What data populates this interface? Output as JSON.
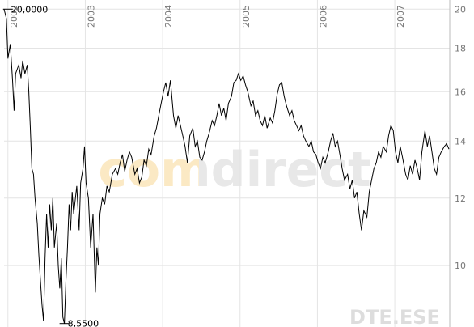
{
  "chart_data": {
    "type": "line",
    "log_scale": true,
    "grid": true,
    "color": "#000000",
    "xlim": [
      2001.95,
      2007.71
    ],
    "xticks": [
      2002,
      2003,
      2004,
      2005,
      2006,
      2007
    ],
    "ylim": [
      8.47,
      20.5
    ],
    "yticks": [
      10,
      12,
      14,
      16,
      18,
      20
    ],
    "x": [
      2001.95,
      2001.98,
      2002.0,
      2002.03,
      2002.06,
      2002.08,
      2002.1,
      2002.14,
      2002.17,
      2002.19,
      2002.22,
      2002.25,
      2002.27,
      2002.29,
      2002.31,
      2002.33,
      2002.35,
      2002.38,
      2002.4,
      2002.42,
      2002.44,
      2002.46,
      2002.48,
      2002.5,
      2002.52,
      2002.54,
      2002.56,
      2002.58,
      2002.6,
      2002.63,
      2002.65,
      2002.67,
      2002.69,
      2002.71,
      2002.73,
      2002.75,
      2002.77,
      2002.79,
      2002.81,
      2002.83,
      2002.85,
      2002.89,
      2002.92,
      2002.94,
      2002.97,
      2002.99,
      2003.01,
      2003.04,
      2003.07,
      2003.1,
      2003.13,
      2003.15,
      2003.17,
      2003.19,
      2003.22,
      2003.25,
      2003.28,
      2003.31,
      2003.35,
      2003.39,
      2003.42,
      2003.45,
      2003.48,
      2003.51,
      2003.54,
      2003.57,
      2003.6,
      2003.64,
      2003.67,
      2003.7,
      2003.73,
      2003.76,
      2003.79,
      2003.82,
      2003.85,
      2003.89,
      2003.92,
      2003.95,
      2003.98,
      2004.01,
      2004.04,
      2004.07,
      2004.1,
      2004.14,
      2004.17,
      2004.2,
      2004.23,
      2004.26,
      2004.29,
      2004.32,
      2004.35,
      2004.39,
      2004.42,
      2004.45,
      2004.48,
      2004.51,
      2004.54,
      2004.57,
      2004.6,
      2004.64,
      2004.67,
      2004.7,
      2004.73,
      2004.76,
      2004.79,
      2004.82,
      2004.85,
      2004.89,
      2004.92,
      2004.95,
      2004.98,
      2005.01,
      2005.04,
      2005.07,
      2005.1,
      2005.14,
      2005.17,
      2005.2,
      2005.23,
      2005.26,
      2005.29,
      2005.32,
      2005.35,
      2005.39,
      2005.42,
      2005.45,
      2005.48,
      2005.51,
      2005.54,
      2005.57,
      2005.6,
      2005.64,
      2005.67,
      2005.7,
      2005.73,
      2005.76,
      2005.79,
      2005.82,
      2005.85,
      2005.89,
      2005.92,
      2005.95,
      2005.98,
      2006.01,
      2006.04,
      2006.07,
      2006.1,
      2006.14,
      2006.17,
      2006.2,
      2006.23,
      2006.26,
      2006.29,
      2006.32,
      2006.35,
      2006.39,
      2006.42,
      2006.45,
      2006.48,
      2006.51,
      2006.54,
      2006.57,
      2006.6,
      2006.64,
      2006.67,
      2006.7,
      2006.73,
      2006.76,
      2006.79,
      2006.82,
      2006.85,
      2006.89,
      2006.92,
      2006.95,
      2006.98,
      2007.01,
      2007.04,
      2007.07,
      2007.1,
      2007.14,
      2007.17,
      2007.2,
      2007.23,
      2007.26,
      2007.29,
      2007.32,
      2007.35,
      2007.39,
      2007.42,
      2007.45,
      2007.48,
      2007.51,
      2007.54,
      2007.57,
      2007.6,
      2007.64,
      2007.67,
      2007.7
    ],
    "values": [
      20.0,
      19.5,
      17.5,
      18.2,
      16.5,
      15.2,
      16.8,
      17.2,
      16.6,
      17.4,
      16.8,
      17.2,
      16.0,
      14.5,
      13.0,
      12.8,
      12.0,
      11.2,
      10.3,
      9.6,
      9.0,
      8.6,
      10.2,
      11.5,
      10.5,
      11.8,
      11.0,
      12.0,
      10.5,
      11.2,
      10.0,
      9.4,
      10.2,
      8.7,
      8.55,
      9.6,
      10.5,
      11.8,
      11.0,
      12.2,
      11.5,
      12.4,
      11.0,
      12.5,
      13.0,
      13.8,
      12.5,
      12.0,
      10.5,
      11.5,
      9.3,
      10.5,
      10.0,
      11.5,
      12.0,
      11.8,
      12.4,
      12.2,
      12.8,
      13.0,
      12.8,
      13.2,
      13.5,
      12.9,
      13.3,
      13.6,
      13.4,
      12.8,
      13.0,
      12.5,
      12.7,
      13.3,
      13.1,
      13.7,
      13.5,
      14.2,
      14.5,
      15.0,
      15.5,
      16.0,
      16.4,
      15.8,
      16.5,
      15.0,
      14.5,
      15.0,
      14.6,
      14.2,
      13.8,
      13.2,
      14.2,
      14.5,
      13.8,
      14.0,
      13.4,
      13.3,
      13.6,
      14.0,
      14.3,
      14.8,
      14.6,
      15.0,
      15.5,
      15.0,
      15.3,
      14.8,
      15.5,
      15.8,
      16.4,
      16.5,
      16.8,
      16.5,
      16.7,
      16.3,
      16.0,
      15.4,
      15.6,
      15.0,
      15.2,
      14.8,
      14.6,
      15.0,
      14.5,
      14.9,
      14.7,
      15.2,
      15.9,
      16.3,
      16.4,
      15.8,
      15.4,
      15.0,
      15.2,
      14.8,
      14.6,
      14.4,
      14.6,
      14.2,
      14.0,
      13.8,
      14.0,
      13.6,
      13.5,
      13.2,
      13.0,
      13.4,
      13.2,
      13.6,
      14.0,
      14.3,
      13.8,
      14.0,
      13.5,
      13.0,
      12.6,
      12.8,
      12.3,
      12.6,
      12.0,
      12.2,
      11.5,
      11.0,
      11.6,
      11.4,
      12.2,
      12.6,
      13.0,
      13.2,
      13.6,
      13.4,
      13.8,
      13.6,
      14.2,
      14.6,
      14.4,
      13.6,
      13.2,
      13.8,
      13.4,
      12.8,
      12.6,
      13.1,
      12.8,
      13.3,
      13.0,
      12.6,
      13.6,
      14.4,
      13.8,
      14.2,
      13.6,
      13.0,
      12.8,
      13.4,
      13.6,
      13.8,
      13.9,
      13.7
    ],
    "annotations": [
      {
        "text": "20,0000",
        "x": 2002.0,
        "y": 20
      },
      {
        "text": "8,5500",
        "x": 2002.73,
        "y": 8.55
      }
    ],
    "watermark": "comdirect",
    "symbol": "DTE.ESE"
  }
}
